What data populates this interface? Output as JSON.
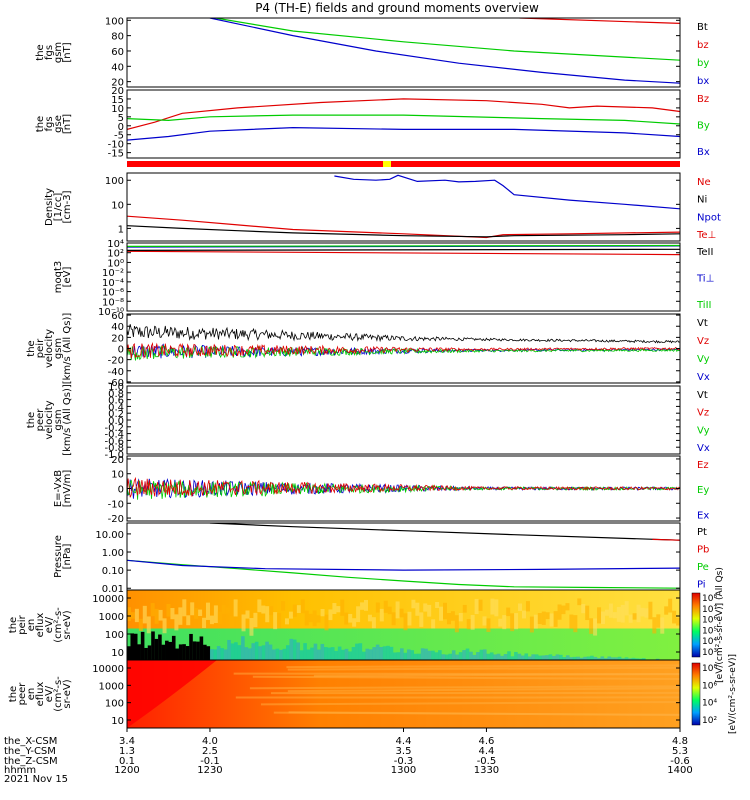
{
  "title": "P4 (TH-E) fields and ground moments overview",
  "colors": {
    "black": "#000000",
    "red": "#e00000",
    "green": "#00cc00",
    "blue": "#0000cc"
  },
  "chart_data": [
    {
      "panel": "fgs_gsm",
      "type": "line",
      "ylabel": [
        "the",
        "fgs",
        "gsm",
        "[nT]"
      ],
      "ylim": [
        13,
        103
      ],
      "ticks": [
        "100",
        "80",
        "60",
        "40",
        "20"
      ],
      "legend": [
        {
          "label": "Bt",
          "color": "black"
        },
        {
          "label": "bz",
          "color": "red"
        },
        {
          "label": "by",
          "color": "green"
        },
        {
          "label": "bx",
          "color": "blue"
        }
      ],
      "series": [
        {
          "name": "bz",
          "color": "red",
          "x": [
            1342,
            1400
          ],
          "y": [
            103,
            96
          ]
        },
        {
          "name": "by",
          "color": "green",
          "x": [
            1232,
            1260,
            1300,
            1340,
            1400
          ],
          "y": [
            103,
            86,
            72,
            60,
            48
          ]
        },
        {
          "name": "bx",
          "color": "blue",
          "x": [
            1230,
            1260,
            1290,
            1320,
            1350,
            1380,
            1400
          ],
          "y": [
            103,
            80,
            60,
            44,
            32,
            22,
            18
          ]
        }
      ]
    },
    {
      "panel": "fgs_gse",
      "type": "line",
      "ylabel": [
        "the",
        "fgs",
        "gse",
        "[nT]"
      ],
      "ylim": [
        -18,
        20
      ],
      "ticks": [
        "20",
        "15",
        "10",
        "5",
        "0",
        "-5",
        "-10",
        "-15"
      ],
      "legend": [
        {
          "label": "Bz",
          "color": "red"
        },
        {
          "label": "By",
          "color": "green"
        },
        {
          "label": "Bx",
          "color": "blue"
        }
      ],
      "series": [
        {
          "name": "Bz",
          "color": "red",
          "x": [
            1200,
            1210,
            1220,
            1240,
            1270,
            1300,
            1330,
            1350,
            1360,
            1370,
            1390,
            1400
          ],
          "y": [
            -2,
            2,
            7,
            10,
            13,
            15,
            14,
            12,
            10,
            11,
            10,
            8
          ]
        },
        {
          "name": "By",
          "color": "green",
          "x": [
            1200,
            1215,
            1230,
            1260,
            1300,
            1350,
            1380,
            1400
          ],
          "y": [
            4,
            3,
            5,
            6,
            6,
            4,
            3,
            1
          ]
        },
        {
          "name": "Bx",
          "color": "blue",
          "x": [
            1200,
            1215,
            1230,
            1260,
            1300,
            1340,
            1380,
            1400
          ],
          "y": [
            -8,
            -6,
            -3,
            -1,
            -2,
            -2,
            -4,
            -6
          ]
        }
      ]
    },
    {
      "panel": "density",
      "type": "line",
      "log": true,
      "ylabel": [
        "Density",
        "[1/cc]",
        "[cm-3]"
      ],
      "ylim": [
        0.3,
        200
      ],
      "ticks": [
        "100",
        "10",
        "1"
      ],
      "legend": [
        {
          "label": "Ne",
          "color": "red"
        },
        {
          "label": "Ni",
          "color": "black"
        },
        {
          "label": "Npot",
          "color": "blue"
        },
        {
          "label": "Te⊥",
          "color": "red"
        }
      ],
      "series": [
        {
          "name": "Npot",
          "color": "blue",
          "x": [
            1275,
            1282,
            1290,
            1295,
            1298,
            1305,
            1315,
            1320,
            1326,
            1333,
            1336,
            1340,
            1360,
            1380,
            1400
          ],
          "y": [
            150,
            110,
            100,
            110,
            160,
            90,
            100,
            85,
            90,
            100,
            60,
            25,
            15,
            10,
            6.5
          ]
        },
        {
          "name": "Ne",
          "color": "red",
          "x": [
            1200,
            1220,
            1240,
            1260,
            1300,
            1330,
            1336,
            1360,
            1400
          ],
          "y": [
            3.2,
            2.2,
            1.4,
            0.9,
            0.6,
            0.42,
            0.55,
            0.6,
            0.7
          ]
        },
        {
          "name": "Ni",
          "color": "black",
          "x": [
            1200,
            1220,
            1240,
            1260,
            1300,
            1330,
            1340,
            1380,
            1400
          ],
          "y": [
            1.3,
            1.0,
            0.8,
            0.65,
            0.5,
            0.45,
            0.5,
            0.55,
            0.6
          ]
        }
      ]
    },
    {
      "panel": "moqt3",
      "type": "line",
      "log": true,
      "ylabel": [
        "moqt3",
        "[eV]"
      ],
      "ylim": [
        1e-10,
        10000.0
      ],
      "ticks": [
        "10⁴",
        "10²",
        "10⁰",
        "10⁻²",
        "10⁻⁴",
        "10⁻⁶",
        "10⁻⁸",
        "10⁻¹⁰"
      ],
      "legend": [
        {
          "label": "TeII",
          "color": "black"
        },
        {
          "label": "Ti⊥",
          "color": "blue"
        },
        {
          "label": "TiII",
          "color": "green"
        }
      ],
      "series": [
        {
          "name": "Te⊥",
          "color": "red",
          "x": [
            1200,
            1400
          ],
          "y": [
            200,
            40
          ]
        },
        {
          "name": "TeII",
          "color": "black",
          "x": [
            1200,
            1400
          ],
          "y": [
            300,
            500
          ]
        },
        {
          "name": "Ti⊥",
          "color": "blue",
          "x": [
            1200,
            1400
          ],
          "y": [
            1500,
            2500
          ]
        },
        {
          "name": "TiII",
          "color": "green",
          "x": [
            1200,
            1400
          ],
          "y": [
            2000,
            3000
          ]
        }
      ]
    },
    {
      "panel": "peir_velocity",
      "type": "line",
      "ylabel": [
        "the",
        "peir",
        "velocity",
        "gsm",
        "[km/s (All Qs)]"
      ],
      "ylim": [
        -62,
        62
      ],
      "ticks": [
        "60",
        "40",
        "20",
        "0",
        "-20",
        "-40",
        "-60"
      ],
      "legend": [
        {
          "label": "Vt",
          "color": "black"
        },
        {
          "label": "Vz",
          "color": "red"
        },
        {
          "label": "Vy",
          "color": "green"
        },
        {
          "label": "Vx",
          "color": "blue"
        }
      ],
      "series": [
        {
          "name": "Vt",
          "color": "black",
          "x": [
            1200,
            1250,
            1300,
            1350,
            1400
          ],
          "y": [
            30,
            25,
            18,
            15,
            12
          ]
        },
        {
          "name": "Vx",
          "color": "blue",
          "x": [
            1200,
            1250,
            1300,
            1350,
            1400
          ],
          "y": [
            -5,
            -6,
            -4,
            -3,
            -2
          ]
        },
        {
          "name": "Vy",
          "color": "green",
          "x": [
            1200,
            1250,
            1300,
            1350,
            1400
          ],
          "y": [
            -8,
            -6,
            -5,
            -4,
            -3
          ]
        },
        {
          "name": "Vz",
          "color": "red",
          "x": [
            1200,
            1250,
            1300,
            1350,
            1400
          ],
          "y": [
            -4,
            -3,
            -2,
            -1,
            0
          ]
        }
      ]
    },
    {
      "panel": "peer_velocity",
      "type": "line",
      "ylabel": [
        "the",
        "peer",
        "velocity",
        "gsm",
        "[km/s (All Qs)]"
      ],
      "ylim": [
        -1,
        1
      ],
      "ticks": [
        "1.0",
        "0.8",
        "0.6",
        "0.4",
        "0.2",
        "0.0",
        "-0.2",
        "-0.4",
        "-0.6",
        "-0.8",
        "-1.0"
      ],
      "legend": [
        {
          "label": "Vt",
          "color": "black"
        },
        {
          "label": "Vz",
          "color": "red"
        },
        {
          "label": "Vy",
          "color": "green"
        },
        {
          "label": "Vx",
          "color": "blue"
        }
      ],
      "series": []
    },
    {
      "panel": "e_vxb",
      "type": "line",
      "ylabel": [
        "E=-VxB",
        "[mV/m]"
      ],
      "ylim": [
        -22,
        22
      ],
      "ticks": [
        "20",
        "10",
        "0",
        "-10",
        "-20"
      ],
      "legend": [
        {
          "label": "Ez",
          "color": "red"
        },
        {
          "label": "Ey",
          "color": "green"
        },
        {
          "label": "Ex",
          "color": "blue"
        }
      ],
      "series": [
        {
          "name": "Ex",
          "color": "blue",
          "x": [
            1200,
            1300,
            1400
          ],
          "y": [
            0,
            0,
            0
          ]
        },
        {
          "name": "Ey",
          "color": "green",
          "x": [
            1200,
            1300,
            1400
          ],
          "y": [
            -1,
            0,
            0
          ]
        },
        {
          "name": "Ez",
          "color": "red",
          "x": [
            1200,
            1300,
            1400
          ],
          "y": [
            0.5,
            0.3,
            0
          ]
        }
      ]
    },
    {
      "panel": "pressure",
      "type": "line",
      "log": true,
      "ylabel": [
        "Pressure",
        "[nPa]"
      ],
      "ylim": [
        0.008,
        40
      ],
      "ticks": [
        "10.00",
        "1.00",
        "0.10",
        "0.01"
      ],
      "legend": [
        {
          "label": "Pt",
          "color": "black"
        },
        {
          "label": "Pb",
          "color": "red"
        },
        {
          "label": "Pe",
          "color": "green"
        },
        {
          "label": "Pi",
          "color": "blue"
        }
      ],
      "series": [
        {
          "name": "Pt",
          "color": "black",
          "x": [
            1230,
            1260,
            1300,
            1340,
            1400
          ],
          "y": [
            40,
            25,
            15,
            9,
            4.5
          ]
        },
        {
          "name": "Pb",
          "color": "red",
          "x": [
            1390,
            1400
          ],
          "y": [
            5,
            4.5
          ]
        },
        {
          "name": "Pe",
          "color": "green",
          "x": [
            1200,
            1220,
            1240,
            1260,
            1280,
            1300,
            1320,
            1340,
            1370,
            1400
          ],
          "y": [
            0.35,
            0.2,
            0.12,
            0.07,
            0.04,
            0.025,
            0.016,
            0.012,
            0.011,
            0.01
          ]
        },
        {
          "name": "Pi",
          "color": "blue",
          "x": [
            1200,
            1220,
            1250,
            1300,
            1350,
            1400
          ],
          "y": [
            0.35,
            0.18,
            0.12,
            0.1,
            0.11,
            0.13
          ]
        }
      ]
    },
    {
      "panel": "peir_eflux",
      "type": "heatmap",
      "ylabel": [
        "the",
        "peir",
        "en",
        "eflux",
        "eV/",
        "(cm²-s-",
        "sr-eV)"
      ],
      "ticks": [
        "10000",
        "1000",
        "100",
        "10"
      ],
      "colorbar": {
        "label": "[eV/(cm²-s-sr-eV)] (All Qs)",
        "ticks": [
          "10⁸",
          "10⁷",
          "10⁶",
          "10⁵",
          "10⁴",
          "10³"
        ]
      }
    },
    {
      "panel": "peer_eflux",
      "type": "heatmap",
      "ylabel": [
        "the",
        "peer",
        "en",
        "eflux",
        "eV/",
        "(cm²-s-",
        "sr-eV)"
      ],
      "ticks": [
        "10000",
        "1000",
        "100",
        "10"
      ],
      "colorbar": {
        "label": "[eV/(cm²-s-sr-eV)]",
        "ticks": [
          "10⁸",
          "10⁶",
          "10⁴",
          "10²"
        ]
      }
    }
  ],
  "xaxis": {
    "range": [
      1200,
      1400
    ],
    "labels": [
      "the_X-CSM",
      "the_Y-CSM",
      "the_Z-CSM",
      "hhmm",
      "2021 Nov 15"
    ],
    "ticks": [
      {
        "t": 1200,
        "rows": [
          "3.4",
          "1.3",
          "0.1",
          "1200"
        ]
      },
      {
        "t": 1230,
        "rows": [
          "4.0",
          "2.5",
          "-0.1",
          "1230"
        ]
      },
      {
        "t": 1300,
        "rows": [
          "4.4",
          "3.5",
          "-0.3",
          "1300"
        ]
      },
      {
        "t": 1330,
        "rows": [
          "4.6",
          "4.4",
          "-0.5",
          "1330"
        ]
      },
      {
        "t": 1400,
        "rows": [
          "4.8",
          "5.3",
          "-0.6",
          "1400"
        ]
      }
    ]
  }
}
